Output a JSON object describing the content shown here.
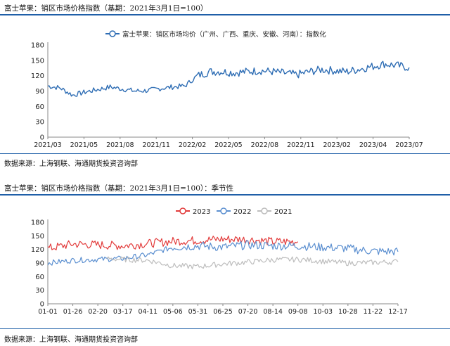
{
  "chart1_title": "富士苹果：销区市场价格指数（基期：2021年3月1日=100）",
  "chart1_source": "数据来源：上海钢联、海通期货投资咨询部",
  "chart2_title": "富士苹果：销区市场价格指数（基期：2021年3月1日=100）：季节性",
  "chart2_source": "数据来源：上海钢联、海通期货投资咨询部",
  "colors": {
    "rule": "#1f5fa8",
    "s2023": "#e23b3b",
    "s2022": "#5b8fd0",
    "s2021": "#bdbdbd",
    "main": "#2e6db4"
  },
  "chart_data": [
    {
      "type": "line",
      "legend_position": "top-center",
      "ylim": [
        0,
        180
      ],
      "yticks": [
        0,
        30,
        60,
        90,
        120,
        150,
        180
      ],
      "xticks": [
        "2021/03",
        "2021/05",
        "2021/08",
        "2021/11",
        "2022/02",
        "2022/05",
        "2022/08",
        "2022/11",
        "2023/02",
        "2023/04",
        "2023/07"
      ],
      "series": [
        {
          "name": "富士苹果：销区市场均价（广州、广西、重庆、安徽、河南）：指数化",
          "x": [
            "2021/03",
            "2021/04",
            "2021/05",
            "2021/06",
            "2021/07",
            "2021/08",
            "2021/09",
            "2021/10",
            "2021/11",
            "2021/12",
            "2022/01",
            "2022/02",
            "2022/03",
            "2022/04",
            "2022/05",
            "2022/06",
            "2022/07",
            "2022/08",
            "2022/09",
            "2022/10",
            "2022/11",
            "2022/12",
            "2023/01",
            "2023/02",
            "2023/03",
            "2023/04",
            "2023/05",
            "2023/06",
            "2023/07",
            "2023/08"
          ],
          "values": [
            100,
            96,
            82,
            88,
            93,
            98,
            94,
            90,
            91,
            95,
            98,
            100,
            120,
            128,
            128,
            126,
            128,
            130,
            128,
            125,
            122,
            128,
            132,
            130,
            128,
            133,
            138,
            143,
            140,
            136
          ]
        }
      ]
    },
    {
      "type": "line",
      "legend_position": "top-center",
      "ylim": [
        0,
        180
      ],
      "yticks": [
        0,
        30,
        60,
        90,
        120,
        150,
        180
      ],
      "xticks": [
        "01-01",
        "01-26",
        "02-20",
        "03-17",
        "04-11",
        "05-06",
        "05-31",
        "06-25",
        "07-20",
        "08-14",
        "09-08",
        "10-03",
        "10-28",
        "11-22",
        "12-17"
      ],
      "series": [
        {
          "name": "2023",
          "x": [
            "01-01",
            "01-26",
            "02-20",
            "03-17",
            "04-11",
            "05-06",
            "05-31",
            "06-25",
            "07-20",
            "08-14",
            "09-08"
          ],
          "values": [
            122,
            132,
            130,
            128,
            133,
            138,
            140,
            143,
            142,
            137,
            137
          ]
        },
        {
          "name": "2022",
          "x": [
            "01-01",
            "01-26",
            "02-20",
            "03-17",
            "04-11",
            "05-06",
            "05-31",
            "06-25",
            "07-20",
            "08-14",
            "09-08",
            "10-03",
            "10-28",
            "11-22",
            "12-17"
          ],
          "values": [
            90,
            96,
            98,
            100,
            108,
            125,
            128,
            125,
            130,
            128,
            128,
            125,
            122,
            116,
            115
          ]
        },
        {
          "name": "2021",
          "x": [
            "03-01",
            "03-17",
            "04-11",
            "05-06",
            "05-31",
            "06-25",
            "07-20",
            "08-14",
            "09-08",
            "10-03",
            "10-28",
            "11-22",
            "12-17"
          ],
          "values": [
            100,
            98,
            96,
            84,
            82,
            88,
            92,
            97,
            98,
            94,
            90,
            91,
            93
          ]
        }
      ]
    }
  ]
}
